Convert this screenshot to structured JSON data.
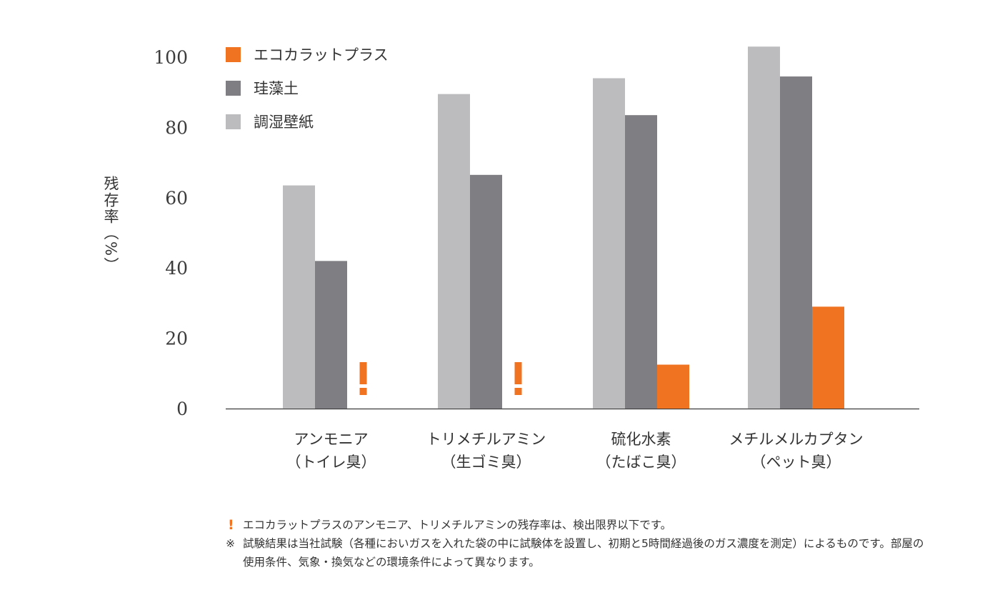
{
  "colors": {
    "eco": "#f07322",
    "diatom": "#7f7f83",
    "paper": "#bcbcbe",
    "axis": "#3c3c3c"
  },
  "chart_data": {
    "type": "bar",
    "title": "",
    "xlabel": "",
    "ylabel": "残存率（%）",
    "ylim": [
      0,
      100
    ],
    "yticks": [
      0,
      20,
      40,
      60,
      80,
      100
    ],
    "grid": false,
    "legend_position": "top-left",
    "categories": [
      [
        "アンモニア",
        "（トイレ臭）"
      ],
      [
        "トリメチルアミン",
        "（生ゴミ臭）"
      ],
      [
        "硫化水素",
        "（たばこ臭）"
      ],
      [
        "メチルメルカプタン",
        "（ペット臭）"
      ]
    ],
    "series": [
      {
        "name": "調湿壁紙",
        "color_key": "paper",
        "values": [
          63.5,
          89.5,
          94,
          103
        ]
      },
      {
        "name": "珪藻土",
        "color_key": "diatom",
        "values": [
          42,
          66.5,
          83.5,
          94.5
        ]
      },
      {
        "name": "エコカラットプラス",
        "color_key": "eco",
        "values": [
          null,
          null,
          12.5,
          29
        ]
      }
    ],
    "annotations": [
      {
        "category_index": 0,
        "series": "エコカラットプラス",
        "marker": "!"
      },
      {
        "category_index": 1,
        "series": "エコカラットプラス",
        "marker": "!"
      }
    ]
  },
  "legend": [
    {
      "name": "エコカラットプラス",
      "color_key": "eco"
    },
    {
      "name": "珪藻土",
      "color_key": "diatom"
    },
    {
      "name": "調湿壁紙",
      "color_key": "paper"
    }
  ],
  "notes": [
    {
      "mark": "!",
      "text": "エコカラットプラスのアンモニア、トリメチルアミンの残存率は、検出限界以下です。"
    },
    {
      "mark": "※",
      "text": "試験結果は当社試験（各種においガスを入れた袋の中に試験体を設置し、初期と5時間経過後のガス濃度を測定）によるものです。部屋の使用条件、気象・換気などの環境条件によって異なります。"
    }
  ]
}
